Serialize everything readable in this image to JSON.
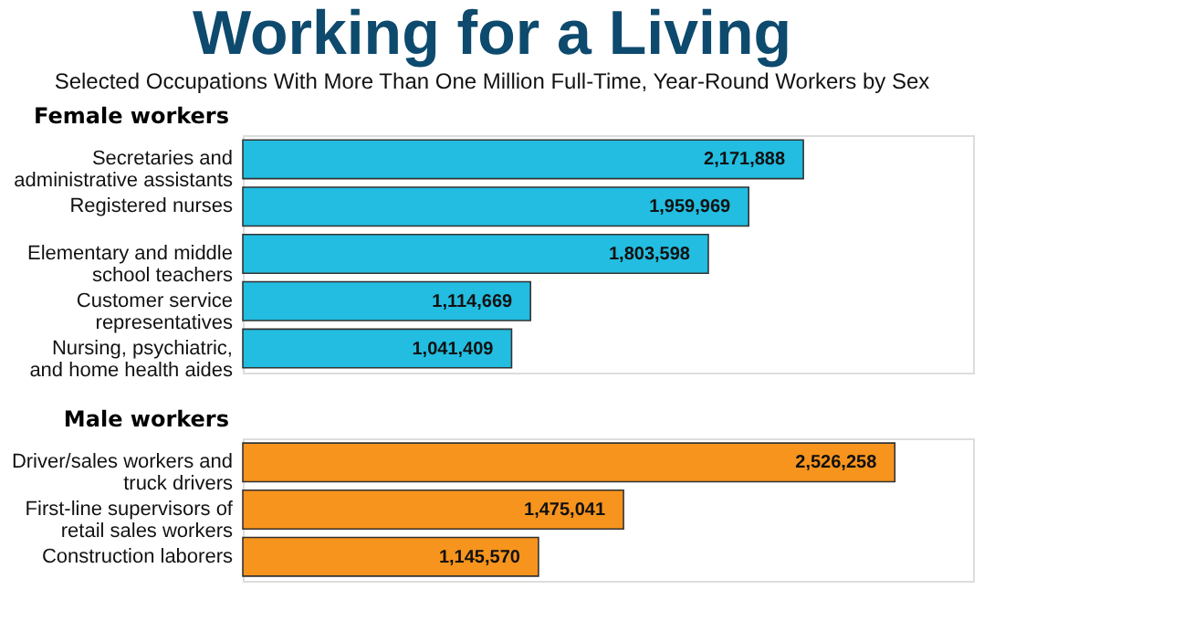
{
  "chart_data": [
    {
      "type": "bar",
      "orientation": "horizontal",
      "title": "Working for a Living",
      "subtitle": "Selected Occupations With More Than One Million Full-Time, Year-Round Workers by Sex",
      "ylabel": "Female workers",
      "categories": [
        "Secretaries and\nadministrative assistants",
        "Registered nurses",
        "Elementary and middle\nschool teachers",
        "Customer service\nrepresentatives",
        "Nursing, psychiatric,\nand home health aides"
      ],
      "values": [
        2171888,
        1959969,
        1803598,
        1114669,
        1041409
      ],
      "value_labels": [
        "2,171,888",
        "1,959,969",
        "1,803,598",
        "1,114,669",
        "1,041,409"
      ],
      "color": "#22bde0"
    },
    {
      "type": "bar",
      "orientation": "horizontal",
      "ylabel": "Male workers",
      "categories": [
        "Driver/sales workers and\ntruck drivers",
        "First-line supervisors of\nretail sales workers",
        "Construction laborers"
      ],
      "values": [
        2526258,
        1475041,
        1145570
      ],
      "value_labels": [
        "2,526,258",
        "1,475,041",
        "1,145,570"
      ],
      "color": "#f7941d"
    }
  ]
}
